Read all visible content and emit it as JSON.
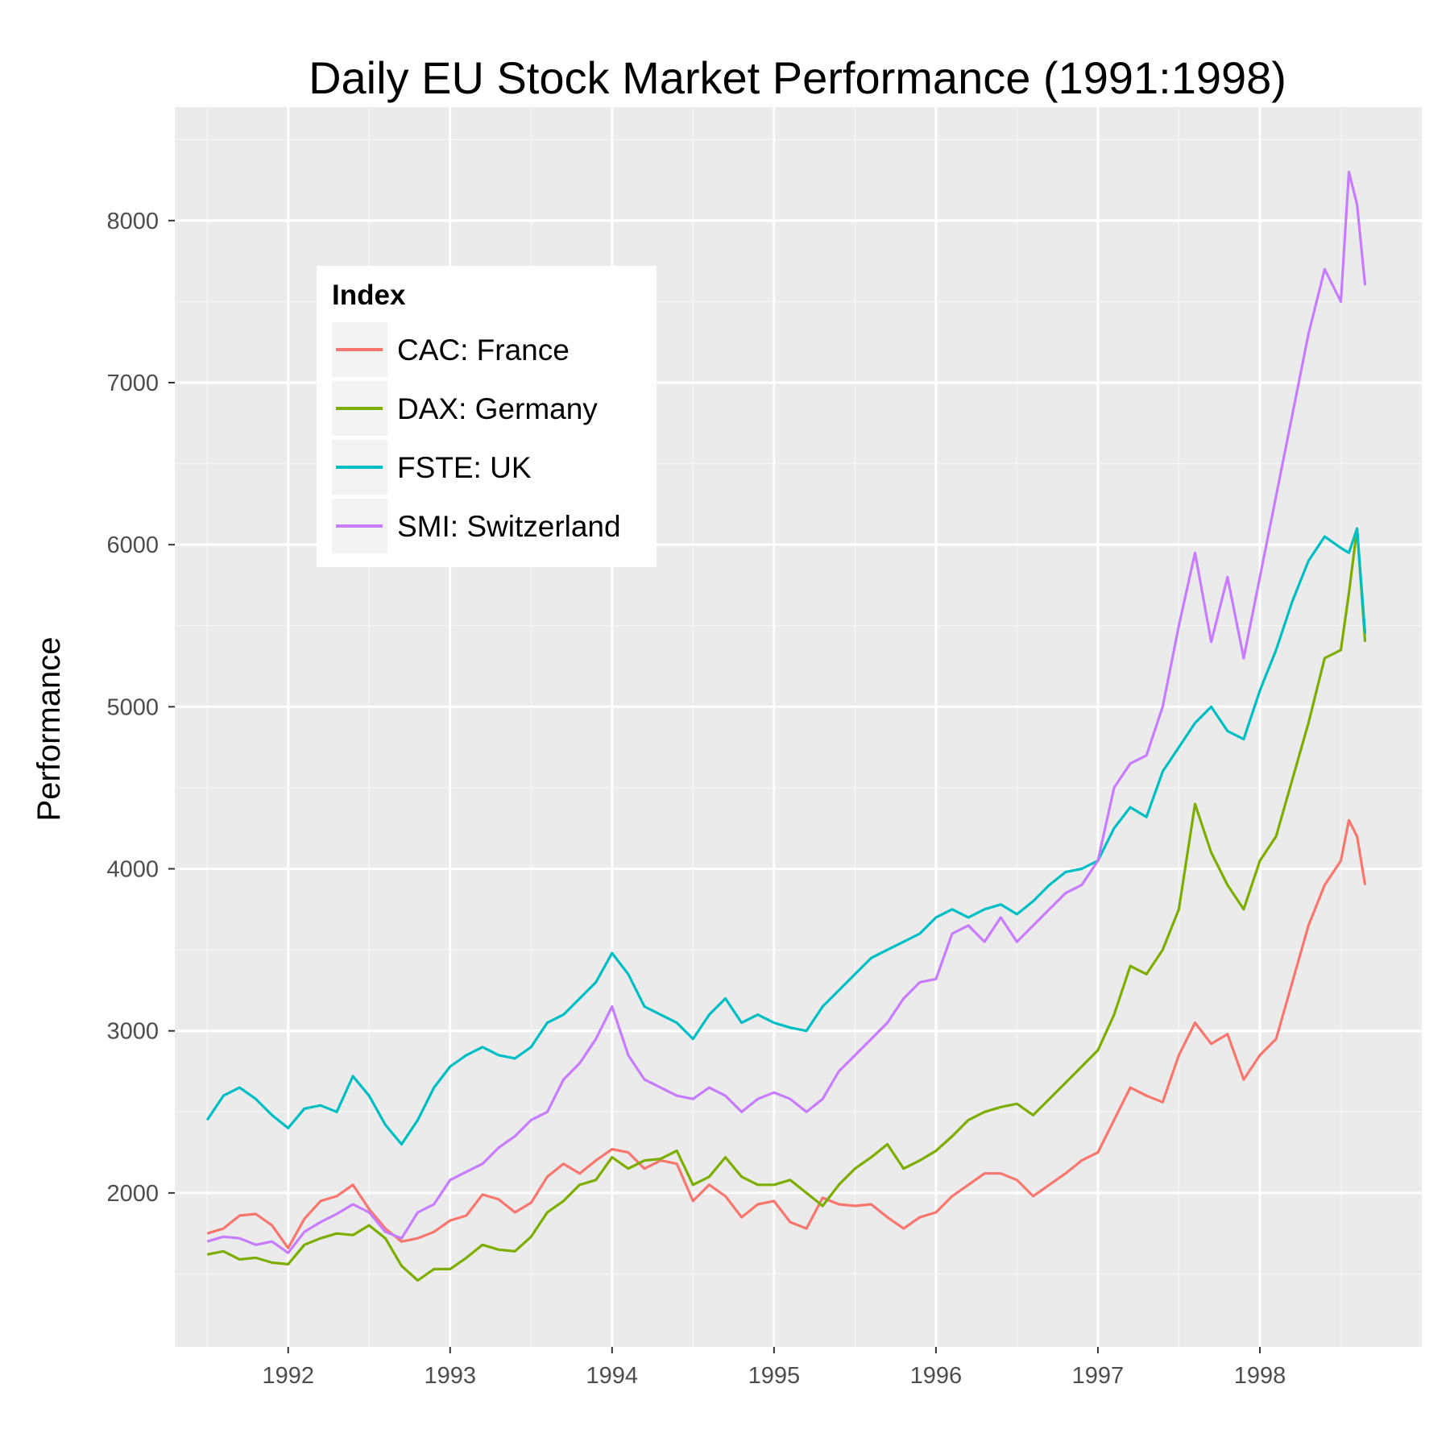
{
  "chart_data": {
    "type": "line",
    "title": "Daily EU Stock Market Performance (1991:1998)",
    "xlabel": "",
    "ylabel": "Performance",
    "xlim": [
      1991.3,
      1999.0
    ],
    "ylim": [
      1050,
      8700
    ],
    "x_ticks": [
      1992,
      1993,
      1994,
      1995,
      1996,
      1997,
      1998
    ],
    "x_tick_labels": [
      "1992",
      "1993",
      "1994",
      "1995",
      "1996",
      "1997",
      "1998"
    ],
    "y_ticks": [
      2000,
      3000,
      4000,
      5000,
      6000,
      7000,
      8000
    ],
    "y_tick_labels": [
      "2000",
      "3000",
      "4000",
      "5000",
      "6000",
      "7000",
      "8000"
    ],
    "grid": true,
    "background": "#ebebeb",
    "legend": {
      "title": "Index",
      "position": "top-left (inside plot)",
      "entries": [
        "CAC: France",
        "DAX: Germany",
        "FSTE: UK",
        "SMI: Switzerland"
      ]
    },
    "series": [
      {
        "name": "CAC: France",
        "color": "#F8766D",
        "x": [
          1991.5,
          1991.6,
          1991.7,
          1991.8,
          1991.9,
          1992.0,
          1992.1,
          1992.2,
          1992.3,
          1992.4,
          1992.5,
          1992.6,
          1992.7,
          1992.8,
          1992.9,
          1993.0,
          1993.1,
          1993.2,
          1993.3,
          1993.4,
          1993.5,
          1993.6,
          1993.7,
          1993.8,
          1993.9,
          1994.0,
          1994.1,
          1994.2,
          1994.3,
          1994.4,
          1994.5,
          1994.6,
          1994.7,
          1994.8,
          1994.9,
          1995.0,
          1995.1,
          1995.2,
          1995.3,
          1995.4,
          1995.5,
          1995.6,
          1995.7,
          1995.8,
          1995.9,
          1996.0,
          1996.1,
          1996.2,
          1996.3,
          1996.4,
          1996.5,
          1996.6,
          1996.7,
          1996.8,
          1996.9,
          1997.0,
          1997.1,
          1997.2,
          1997.3,
          1997.4,
          1997.5,
          1997.6,
          1997.7,
          1997.8,
          1997.9,
          1998.0,
          1998.1,
          1998.2,
          1998.3,
          1998.4,
          1998.5,
          1998.55,
          1998.6,
          1998.65
        ],
        "values": [
          1750,
          1780,
          1860,
          1870,
          1800,
          1660,
          1840,
          1950,
          1980,
          2050,
          1900,
          1780,
          1700,
          1720,
          1760,
          1830,
          1860,
          1990,
          1960,
          1880,
          1940,
          2100,
          2180,
          2120,
          2200,
          2270,
          2250,
          2150,
          2200,
          2180,
          1950,
          2050,
          1980,
          1850,
          1930,
          1950,
          1820,
          1780,
          1970,
          1930,
          1920,
          1930,
          1850,
          1780,
          1850,
          1880,
          1980,
          2050,
          2120,
          2120,
          2080,
          1980,
          2050,
          2120,
          2200,
          2250,
          2450,
          2650,
          2600,
          2560,
          2850,
          3050,
          2920,
          2980,
          2700,
          2850,
          2950,
          3300,
          3650,
          3900,
          4050,
          4300,
          4200,
          3900
        ]
      },
      {
        "name": "DAX: Germany",
        "color": "#7CAE00",
        "x": [
          1991.5,
          1991.6,
          1991.7,
          1991.8,
          1991.9,
          1992.0,
          1992.1,
          1992.2,
          1992.3,
          1992.4,
          1992.5,
          1992.6,
          1992.7,
          1992.8,
          1992.9,
          1993.0,
          1993.1,
          1993.2,
          1993.3,
          1993.4,
          1993.5,
          1993.6,
          1993.7,
          1993.8,
          1993.9,
          1994.0,
          1994.1,
          1994.2,
          1994.3,
          1994.4,
          1994.5,
          1994.6,
          1994.7,
          1994.8,
          1994.9,
          1995.0,
          1995.1,
          1995.2,
          1995.3,
          1995.4,
          1995.5,
          1995.6,
          1995.7,
          1995.8,
          1995.9,
          1996.0,
          1996.1,
          1996.2,
          1996.3,
          1996.4,
          1996.5,
          1996.6,
          1996.7,
          1996.8,
          1996.9,
          1997.0,
          1997.1,
          1997.2,
          1997.3,
          1997.4,
          1997.5,
          1997.6,
          1997.7,
          1997.8,
          1997.9,
          1998.0,
          1998.1,
          1998.2,
          1998.3,
          1998.4,
          1998.5,
          1998.55,
          1998.6,
          1998.65
        ],
        "values": [
          1620,
          1640,
          1590,
          1600,
          1570,
          1560,
          1680,
          1720,
          1750,
          1740,
          1800,
          1720,
          1550,
          1460,
          1530,
          1530,
          1600,
          1680,
          1650,
          1640,
          1730,
          1880,
          1950,
          2050,
          2080,
          2220,
          2150,
          2200,
          2210,
          2260,
          2050,
          2100,
          2220,
          2100,
          2050,
          2050,
          2080,
          2000,
          1920,
          2050,
          2150,
          2220,
          2300,
          2150,
          2200,
          2260,
          2350,
          2450,
          2500,
          2530,
          2550,
          2480,
          2580,
          2680,
          2780,
          2880,
          3100,
          3400,
          3350,
          3500,
          3750,
          4400,
          4100,
          3900,
          3750,
          4050,
          4200,
          4550,
          4900,
          5300,
          5350,
          5700,
          6100,
          5400
        ]
      },
      {
        "name": "FSTE: UK",
        "color": "#00BFC4",
        "x": [
          1991.5,
          1991.6,
          1991.7,
          1991.8,
          1991.9,
          1992.0,
          1992.1,
          1992.2,
          1992.3,
          1992.4,
          1992.5,
          1992.6,
          1992.7,
          1992.8,
          1992.9,
          1993.0,
          1993.1,
          1993.2,
          1993.3,
          1993.4,
          1993.5,
          1993.6,
          1993.7,
          1993.8,
          1993.9,
          1994.0,
          1994.1,
          1994.2,
          1994.3,
          1994.4,
          1994.5,
          1994.6,
          1994.7,
          1994.8,
          1994.9,
          1995.0,
          1995.1,
          1995.2,
          1995.3,
          1995.4,
          1995.5,
          1995.6,
          1995.7,
          1995.8,
          1995.9,
          1996.0,
          1996.1,
          1996.2,
          1996.3,
          1996.4,
          1996.5,
          1996.6,
          1996.7,
          1996.8,
          1996.9,
          1997.0,
          1997.1,
          1997.2,
          1997.3,
          1997.4,
          1997.5,
          1997.6,
          1997.7,
          1997.8,
          1997.9,
          1998.0,
          1998.1,
          1998.2,
          1998.3,
          1998.4,
          1998.5,
          1998.55,
          1998.6,
          1998.65
        ],
        "values": [
          2450,
          2600,
          2650,
          2580,
          2480,
          2400,
          2520,
          2540,
          2500,
          2720,
          2600,
          2420,
          2300,
          2450,
          2650,
          2780,
          2850,
          2900,
          2850,
          2830,
          2900,
          3050,
          3100,
          3200,
          3300,
          3480,
          3350,
          3150,
          3100,
          3050,
          2950,
          3100,
          3200,
          3050,
          3100,
          3050,
          3020,
          3000,
          3150,
          3250,
          3350,
          3450,
          3500,
          3550,
          3600,
          3700,
          3750,
          3700,
          3750,
          3780,
          3720,
          3800,
          3900,
          3980,
          4000,
          4050,
          4250,
          4380,
          4320,
          4600,
          4750,
          4900,
          5000,
          4850,
          4800,
          5100,
          5350,
          5650,
          5900,
          6050,
          5980,
          5950,
          6100,
          5450
        ]
      },
      {
        "name": "SMI: Switzerland",
        "color": "#C77CFF",
        "x": [
          1991.5,
          1991.6,
          1991.7,
          1991.8,
          1991.9,
          1992.0,
          1992.1,
          1992.2,
          1992.3,
          1992.4,
          1992.5,
          1992.6,
          1992.7,
          1992.8,
          1992.9,
          1993.0,
          1993.1,
          1993.2,
          1993.3,
          1993.4,
          1993.5,
          1993.6,
          1993.7,
          1993.8,
          1993.9,
          1994.0,
          1994.1,
          1994.2,
          1994.3,
          1994.4,
          1994.5,
          1994.6,
          1994.7,
          1994.8,
          1994.9,
          1995.0,
          1995.1,
          1995.2,
          1995.3,
          1995.4,
          1995.5,
          1995.6,
          1995.7,
          1995.8,
          1995.9,
          1996.0,
          1996.1,
          1996.2,
          1996.3,
          1996.4,
          1996.5,
          1996.6,
          1996.7,
          1996.8,
          1996.9,
          1997.0,
          1997.1,
          1997.2,
          1997.3,
          1997.4,
          1997.5,
          1997.6,
          1997.7,
          1997.8,
          1997.9,
          1998.0,
          1998.1,
          1998.2,
          1998.3,
          1998.4,
          1998.5,
          1998.55,
          1998.6,
          1998.65
        ],
        "values": [
          1700,
          1730,
          1720,
          1680,
          1700,
          1630,
          1760,
          1820,
          1870,
          1930,
          1880,
          1760,
          1720,
          1880,
          1930,
          2080,
          2130,
          2180,
          2280,
          2350,
          2450,
          2500,
          2700,
          2800,
          2950,
          3150,
          2850,
          2700,
          2650,
          2600,
          2580,
          2650,
          2600,
          2500,
          2580,
          2620,
          2580,
          2500,
          2580,
          2750,
          2850,
          2950,
          3050,
          3200,
          3300,
          3320,
          3600,
          3650,
          3550,
          3700,
          3550,
          3650,
          3750,
          3850,
          3900,
          4050,
          4500,
          4650,
          4700,
          5000,
          5500,
          5950,
          5400,
          5800,
          5300,
          5800,
          6300,
          6800,
          7300,
          7700,
          7500,
          8300,
          8100,
          7600
        ]
      }
    ]
  }
}
